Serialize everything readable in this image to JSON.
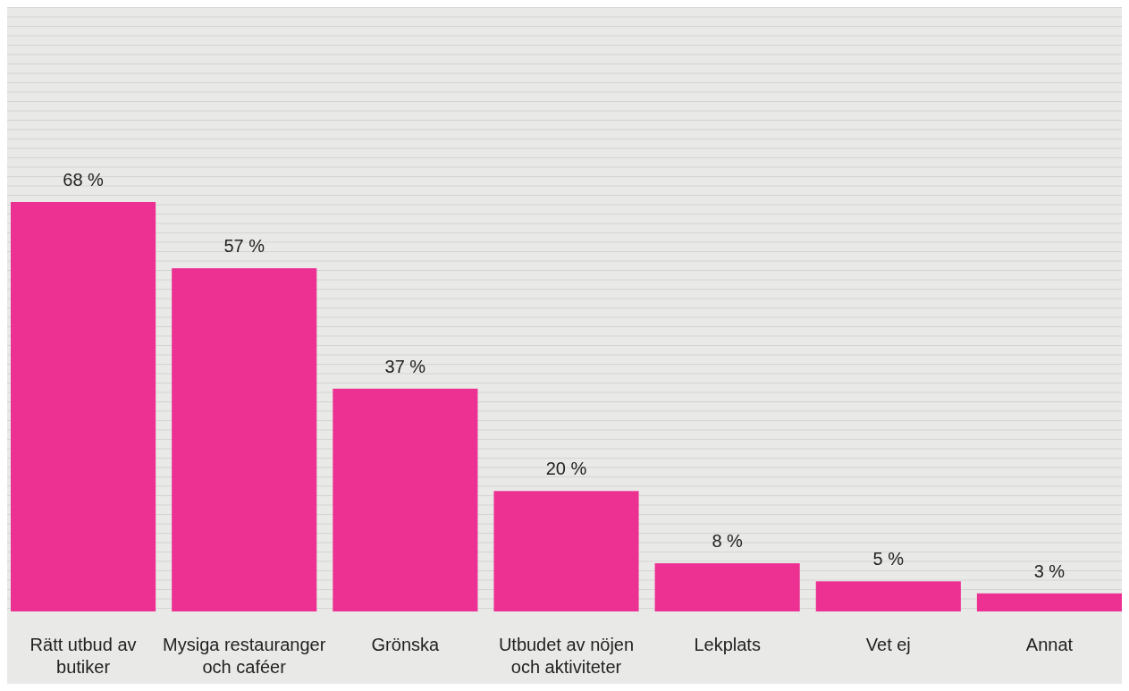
{
  "chart_data": {
    "type": "bar",
    "categories": [
      "Rätt utbud av butiker",
      "Mysiga restauranger och caféer",
      "Grönska",
      "Utbudet av nöjen och aktiviteter",
      "Lekplats",
      "Vet ej",
      "Annat"
    ],
    "values": [
      68,
      57,
      37,
      20,
      8,
      5,
      3
    ],
    "value_labels": [
      "68 %",
      "57 %",
      "37 %",
      "20 %",
      "8 %",
      "5 %",
      "3 %"
    ],
    "color": "#ec3192"
  }
}
